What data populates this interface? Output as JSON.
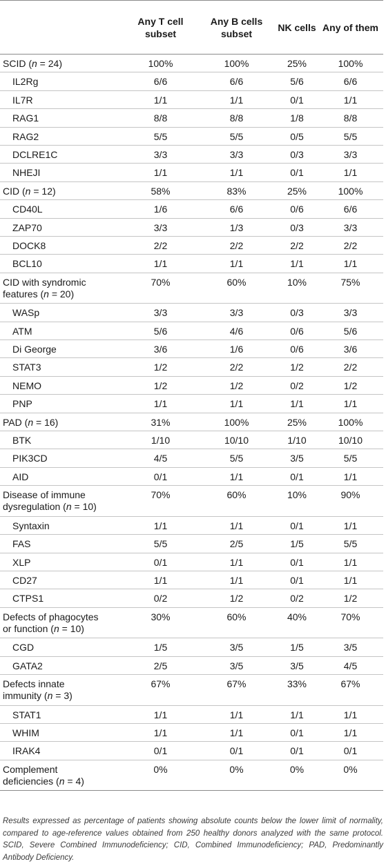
{
  "table": {
    "headers": [
      "",
      "Any T cell subset",
      "Any B cells subset",
      "NK cells",
      "Any of them"
    ],
    "rows": [
      {
        "kind": "group",
        "label": "SCID (",
        "n": "n",
        "rest": " = 24)",
        "values": [
          "100%",
          "100%",
          "25%",
          "100%"
        ]
      },
      {
        "kind": "sub",
        "label": "IL2Rg",
        "values": [
          "6/6",
          "6/6",
          "5/6",
          "6/6"
        ]
      },
      {
        "kind": "sub",
        "label": "IL7R",
        "values": [
          "1/1",
          "1/1",
          "0/1",
          "1/1"
        ]
      },
      {
        "kind": "sub",
        "label": "RAG1",
        "values": [
          "8/8",
          "8/8",
          "1/8",
          "8/8"
        ]
      },
      {
        "kind": "sub",
        "label": "RAG2",
        "values": [
          "5/5",
          "5/5",
          "0/5",
          "5/5"
        ]
      },
      {
        "kind": "sub",
        "label": "DCLRE1C",
        "values": [
          "3/3",
          "3/3",
          "0/3",
          "3/3"
        ]
      },
      {
        "kind": "sub",
        "label": "NHEJI",
        "values": [
          "1/1",
          "1/1",
          "0/1",
          "1/1"
        ]
      },
      {
        "kind": "group",
        "label": "CID (",
        "n": "n",
        "rest": " = 12)",
        "values": [
          "58%",
          "83%",
          "25%",
          "100%"
        ]
      },
      {
        "kind": "sub",
        "label": "CD40L",
        "values": [
          "1/6",
          "6/6",
          "0/6",
          "6/6"
        ]
      },
      {
        "kind": "sub",
        "label": "ZAP70",
        "values": [
          "3/3",
          "1/3",
          "0/3",
          "3/3"
        ]
      },
      {
        "kind": "sub",
        "label": "DOCK8",
        "values": [
          "2/2",
          "2/2",
          "2/2",
          "2/2"
        ]
      },
      {
        "kind": "sub",
        "label": "BCL10",
        "values": [
          "1/1",
          "1/1",
          "1/1",
          "1/1"
        ]
      },
      {
        "kind": "group2",
        "label": "CID with syndromic",
        "label2": "features (",
        "n": "n",
        "rest": " = 20)",
        "values": [
          "70%",
          "60%",
          "10%",
          "75%"
        ]
      },
      {
        "kind": "sub",
        "label": "WASp",
        "values": [
          "3/3",
          "3/3",
          "0/3",
          "3/3"
        ]
      },
      {
        "kind": "sub",
        "label": "ATM",
        "values": [
          "5/6",
          "4/6",
          "0/6",
          "5/6"
        ]
      },
      {
        "kind": "sub",
        "label": "Di George",
        "values": [
          "3/6",
          "1/6",
          "0/6",
          "3/6"
        ]
      },
      {
        "kind": "sub",
        "label": "STAT3",
        "values": [
          "1/2",
          "2/2",
          "1/2",
          "2/2"
        ]
      },
      {
        "kind": "sub",
        "label": "NEMO",
        "values": [
          "1/2",
          "1/2",
          "0/2",
          "1/2"
        ]
      },
      {
        "kind": "sub",
        "label": "PNP",
        "values": [
          "1/1",
          "1/1",
          "1/1",
          "1/1"
        ]
      },
      {
        "kind": "group",
        "label": "PAD (",
        "n": "n",
        "rest": " = 16)",
        "values": [
          "31%",
          "100%",
          "25%",
          "100%"
        ]
      },
      {
        "kind": "sub",
        "label": "BTK",
        "values": [
          "1/10",
          "10/10",
          "1/10",
          "10/10"
        ]
      },
      {
        "kind": "sub",
        "label": "PIK3CD",
        "values": [
          "4/5",
          "5/5",
          "3/5",
          "5/5"
        ]
      },
      {
        "kind": "sub",
        "label": "AID",
        "values": [
          "0/1",
          "1/1",
          "0/1",
          "1/1"
        ]
      },
      {
        "kind": "group2",
        "label": "Disease of immune",
        "label2": "dysregulation (",
        "n": "n",
        "rest": " = 10)",
        "values": [
          "70%",
          "60%",
          "10%",
          "90%"
        ]
      },
      {
        "kind": "sub",
        "label": "Syntaxin",
        "values": [
          "1/1",
          "1/1",
          "0/1",
          "1/1"
        ]
      },
      {
        "kind": "sub",
        "label": "FAS",
        "values": [
          "5/5",
          "2/5",
          "1/5",
          "5/5"
        ]
      },
      {
        "kind": "sub",
        "label": "XLP",
        "values": [
          "0/1",
          "1/1",
          "0/1",
          "1/1"
        ]
      },
      {
        "kind": "sub",
        "label": "CD27",
        "values": [
          "1/1",
          "1/1",
          "0/1",
          "1/1"
        ]
      },
      {
        "kind": "sub",
        "label": "CTPS1",
        "values": [
          "0/2",
          "1/2",
          "0/2",
          "1/2"
        ]
      },
      {
        "kind": "group2",
        "label": "Defects of phagocytes",
        "label2": "or function (",
        "n": "n",
        "rest": " = 10)",
        "values": [
          "30%",
          "60%",
          "40%",
          "70%"
        ]
      },
      {
        "kind": "sub",
        "label": "CGD",
        "values": [
          "1/5",
          "3/5",
          "1/5",
          "3/5"
        ]
      },
      {
        "kind": "sub",
        "label": "GATA2",
        "values": [
          "2/5",
          "3/5",
          "3/5",
          "4/5"
        ]
      },
      {
        "kind": "group2",
        "label": "Defects innate",
        "label2": "immunity (",
        "n": "n",
        "rest": " = 3)",
        "values": [
          "67%",
          "67%",
          "33%",
          "67%"
        ]
      },
      {
        "kind": "sub",
        "label": "STAT1",
        "values": [
          "1/1",
          "1/1",
          "1/1",
          "1/1"
        ]
      },
      {
        "kind": "sub",
        "label": "WHIM",
        "values": [
          "1/1",
          "1/1",
          "0/1",
          "1/1"
        ]
      },
      {
        "kind": "sub",
        "label": "IRAK4",
        "values": [
          "0/1",
          "0/1",
          "0/1",
          "0/1"
        ]
      },
      {
        "kind": "group2",
        "label": "Complement",
        "label2": "deficiencies (",
        "n": "n",
        "rest": " = 4)",
        "values": [
          "0%",
          "0%",
          "0%",
          "0%"
        ]
      }
    ]
  },
  "footnote": "Results expressed as percentage of patients showing absolute counts below the lower limit of normality, compared to age-reference values obtained from 250 healthy donors analyzed with the same protocol. SCID, Severe Combined Immunodeficiency; CID, Combined Immunodeficiency; PAD, Predominantly Antibody Deficiency."
}
